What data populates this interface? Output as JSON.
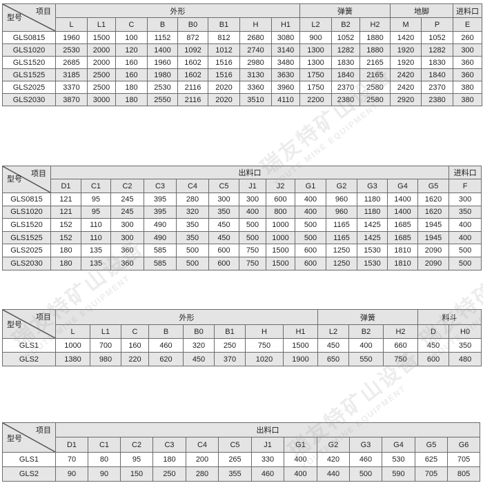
{
  "watermark": {
    "cn": "瑞友特矿山设备",
    "en": "YOUTE MINE EQUIPMENT"
  },
  "tables": [
    {
      "corner_top": "项目",
      "corner_bottom": "型号",
      "groups": [
        {
          "label": "外形",
          "span": 8
        },
        {
          "label": "弹簧",
          "span": 3
        },
        {
          "label": "地脚",
          "span": 2
        },
        {
          "label": "进料口",
          "span": 1
        }
      ],
      "columns": [
        "L",
        "L1",
        "C",
        "B",
        "B0",
        "B1",
        "H",
        "H1",
        "L2",
        "B2",
        "H2",
        "M",
        "P",
        "E"
      ],
      "rows": [
        {
          "model": "GLS0815",
          "values": [
            "1960",
            "1500",
            "100",
            "1152",
            "872",
            "812",
            "2680",
            "3080",
            "900",
            "1052",
            "1880",
            "1420",
            "1052",
            "260"
          ]
        },
        {
          "model": "GLS1020",
          "values": [
            "2530",
            "2000",
            "120",
            "1400",
            "1092",
            "1012",
            "2740",
            "3140",
            "1300",
            "1282",
            "1880",
            "1920",
            "1282",
            "300"
          ]
        },
        {
          "model": "GLS1520",
          "values": [
            "2685",
            "2000",
            "160",
            "1960",
            "1602",
            "1516",
            "2980",
            "3480",
            "1300",
            "1830",
            "2165",
            "1920",
            "1830",
            "360"
          ]
        },
        {
          "model": "GLS1525",
          "values": [
            "3185",
            "2500",
            "160",
            "1980",
            "1602",
            "1516",
            "3130",
            "3630",
            "1750",
            "1840",
            "2165",
            "2420",
            "1840",
            "360"
          ]
        },
        {
          "model": "GLS2025",
          "values": [
            "3370",
            "2500",
            "180",
            "2530",
            "2116",
            "2020",
            "3360",
            "3960",
            "1750",
            "2370",
            "2580",
            "2420",
            "2370",
            "380"
          ]
        },
        {
          "model": "GLS2030",
          "values": [
            "3870",
            "3000",
            "180",
            "2550",
            "2116",
            "2020",
            "3510",
            "4110",
            "2200",
            "2380",
            "2580",
            "2920",
            "2380",
            "380"
          ]
        }
      ]
    },
    {
      "corner_top": "项目",
      "corner_bottom": "型号",
      "groups": [
        {
          "label": "出料口",
          "span": 13
        },
        {
          "label": "进料口",
          "span": 1
        }
      ],
      "columns": [
        "D1",
        "C1",
        "C2",
        "C3",
        "C4",
        "C5",
        "J1",
        "J2",
        "G1",
        "G2",
        "G3",
        "G4",
        "G5",
        "F"
      ],
      "rows": [
        {
          "model": "GLS0815",
          "values": [
            "121",
            "95",
            "245",
            "395",
            "280",
            "300",
            "300",
            "600",
            "400",
            "960",
            "1180",
            "1400",
            "1620",
            "300"
          ]
        },
        {
          "model": "GLS1020",
          "values": [
            "121",
            "95",
            "245",
            "395",
            "320",
            "350",
            "400",
            "800",
            "400",
            "960",
            "1180",
            "1400",
            "1620",
            "350"
          ]
        },
        {
          "model": "GLS1520",
          "values": [
            "152",
            "110",
            "300",
            "490",
            "350",
            "450",
            "500",
            "1000",
            "500",
            "1165",
            "1425",
            "1685",
            "1945",
            "400"
          ]
        },
        {
          "model": "GLS1525",
          "values": [
            "152",
            "110",
            "300",
            "490",
            "350",
            "450",
            "500",
            "1000",
            "500",
            "1165",
            "1425",
            "1685",
            "1945",
            "400"
          ]
        },
        {
          "model": "GLS2025",
          "values": [
            "180",
            "135",
            "360",
            "585",
            "500",
            "600",
            "750",
            "1500",
            "600",
            "1250",
            "1530",
            "1810",
            "2090",
            "500"
          ]
        },
        {
          "model": "GLS2030",
          "values": [
            "180",
            "135",
            "360",
            "585",
            "500",
            "600",
            "750",
            "1500",
            "600",
            "1250",
            "1530",
            "1810",
            "2090",
            "500"
          ]
        }
      ]
    },
    {
      "corner_top": "项目",
      "corner_bottom": "型号",
      "groups": [
        {
          "label": "外形",
          "span": 8
        },
        {
          "label": "弹簧",
          "span": 3
        },
        {
          "label": "料斗",
          "span": 2
        }
      ],
      "columns": [
        "L",
        "L1",
        "C",
        "B",
        "B0",
        "B1",
        "H",
        "H1",
        "L2",
        "B2",
        "H2",
        "D",
        "H0"
      ],
      "rows": [
        {
          "model": "GLS1",
          "values": [
            "1000",
            "700",
            "160",
            "460",
            "320",
            "250",
            "750",
            "1500",
            "450",
            "400",
            "660",
            "450",
            "350"
          ]
        },
        {
          "model": "GLS2",
          "values": [
            "1380",
            "980",
            "220",
            "620",
            "450",
            "370",
            "1020",
            "1900",
            "650",
            "550",
            "750",
            "600",
            "480"
          ]
        }
      ]
    },
    {
      "corner_top": "项目",
      "corner_bottom": "型号",
      "groups": [
        {
          "label": "出料口",
          "span": 13
        }
      ],
      "columns": [
        "D1",
        "C1",
        "C2",
        "C3",
        "C4",
        "C5",
        "J1",
        "G1",
        "G2",
        "G3",
        "G4",
        "G5",
        "G6"
      ],
      "rows": [
        {
          "model": "GLS1",
          "values": [
            "70",
            "80",
            "95",
            "180",
            "200",
            "265",
            "330",
            "400",
            "420",
            "460",
            "530",
            "625",
            "705"
          ]
        },
        {
          "model": "GLS2",
          "values": [
            "90",
            "90",
            "150",
            "250",
            "280",
            "355",
            "460",
            "400",
            "440",
            "500",
            "590",
            "705",
            "805"
          ]
        }
      ]
    }
  ]
}
